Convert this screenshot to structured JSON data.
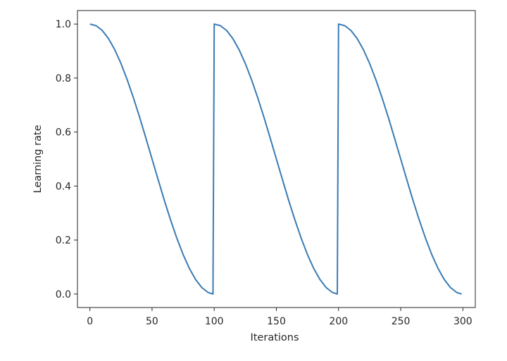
{
  "chart_data": {
    "type": "line",
    "title": "",
    "xlabel": "Iterations",
    "ylabel": "Learning rate",
    "xlim": [
      -10,
      310
    ],
    "ylim": [
      -0.05,
      1.05
    ],
    "x_ticks": [
      0,
      50,
      100,
      150,
      200,
      250,
      300
    ],
    "y_ticks": [
      0.0,
      0.2,
      0.4,
      0.6,
      0.8,
      1.0
    ],
    "x_tick_labels": [
      "0",
      "50",
      "100",
      "150",
      "200",
      "250",
      "300"
    ],
    "y_tick_labels": [
      "0.0",
      "0.2",
      "0.4",
      "0.6",
      "0.8",
      "1.0"
    ],
    "grid": false,
    "legend": "none",
    "series": [
      {
        "color": "#3a7bb4",
        "x": [
          0,
          5,
          10,
          15,
          20,
          25,
          30,
          35,
          40,
          45,
          50,
          55,
          60,
          65,
          70,
          75,
          80,
          85,
          90,
          95,
          99,
          100,
          105,
          110,
          115,
          120,
          125,
          130,
          135,
          140,
          145,
          150,
          155,
          160,
          165,
          170,
          175,
          180,
          185,
          190,
          195,
          199,
          200,
          205,
          210,
          215,
          220,
          225,
          230,
          235,
          240,
          245,
          250,
          255,
          260,
          265,
          270,
          275,
          280,
          285,
          290,
          295,
          299
        ],
        "y": [
          1.0,
          0.994,
          0.976,
          0.946,
          0.905,
          0.854,
          0.794,
          0.727,
          0.655,
          0.578,
          0.5,
          0.422,
          0.345,
          0.273,
          0.206,
          0.146,
          0.095,
          0.054,
          0.024,
          0.006,
          0.0,
          1.0,
          0.994,
          0.976,
          0.946,
          0.905,
          0.854,
          0.794,
          0.727,
          0.655,
          0.578,
          0.5,
          0.422,
          0.345,
          0.273,
          0.206,
          0.146,
          0.095,
          0.054,
          0.024,
          0.006,
          0.0,
          1.0,
          0.994,
          0.976,
          0.946,
          0.905,
          0.854,
          0.794,
          0.727,
          0.655,
          0.578,
          0.5,
          0.422,
          0.345,
          0.273,
          0.206,
          0.146,
          0.095,
          0.054,
          0.024,
          0.006,
          0.0
        ]
      }
    ]
  }
}
